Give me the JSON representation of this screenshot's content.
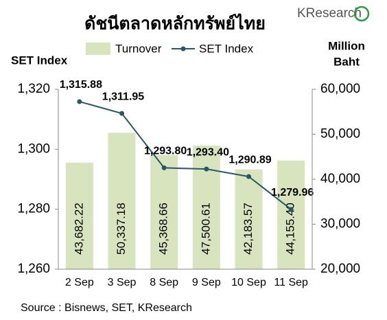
{
  "chart_data": {
    "type": "bar_line",
    "title": "ดัชนีตลาดหลักทรัพย์ไทย",
    "logo": "KResearch",
    "y_label": "SET Index",
    "y2_label": [
      "Million",
      "Baht"
    ],
    "source": "Source : Bisnews, SET, KResearch",
    "categories": [
      "2 Sep",
      "3 Sep",
      "8 Sep",
      "9 Sep",
      "10 Sep",
      "11 Sep"
    ],
    "series": [
      {
        "name": "Turnover",
        "color": "#d7e4bd",
        "axis": "y2",
        "values": [
          43682.22,
          50337.18,
          45368.66,
          47500.61,
          42183.57,
          44155.4
        ],
        "value_labels": [
          "43,682.22",
          "50,337.18",
          "45,368.66",
          "47,500.61",
          "42,183.57",
          "44,155.40"
        ]
      },
      {
        "name": "SET Index",
        "color": "#2b5668",
        "axis": "y",
        "values": [
          1315.88,
          1311.95,
          1293.8,
          1293.4,
          1290.89,
          1279.96
        ],
        "value_labels": [
          "1,315.88",
          "1,311.95",
          "1,293.80",
          "1,293.40",
          "1,290.89",
          "1,279.96"
        ]
      }
    ],
    "ylim": [
      1260,
      1320
    ],
    "yticks": [
      {
        "value": 1260,
        "label": "1,260"
      },
      {
        "value": 1280,
        "label": "1,280"
      },
      {
        "value": 1300,
        "label": "1,300"
      },
      {
        "value": 1320,
        "label": "1,320"
      }
    ],
    "y2lim": [
      20000,
      60000
    ],
    "y2ticks": [
      {
        "value": 20000,
        "label": "20,000"
      },
      {
        "value": 30000,
        "label": "30,000"
      },
      {
        "value": 40000,
        "label": "40,000"
      },
      {
        "value": 50000,
        "label": "50,000"
      },
      {
        "value": 60000,
        "label": "60,000"
      }
    ]
  }
}
